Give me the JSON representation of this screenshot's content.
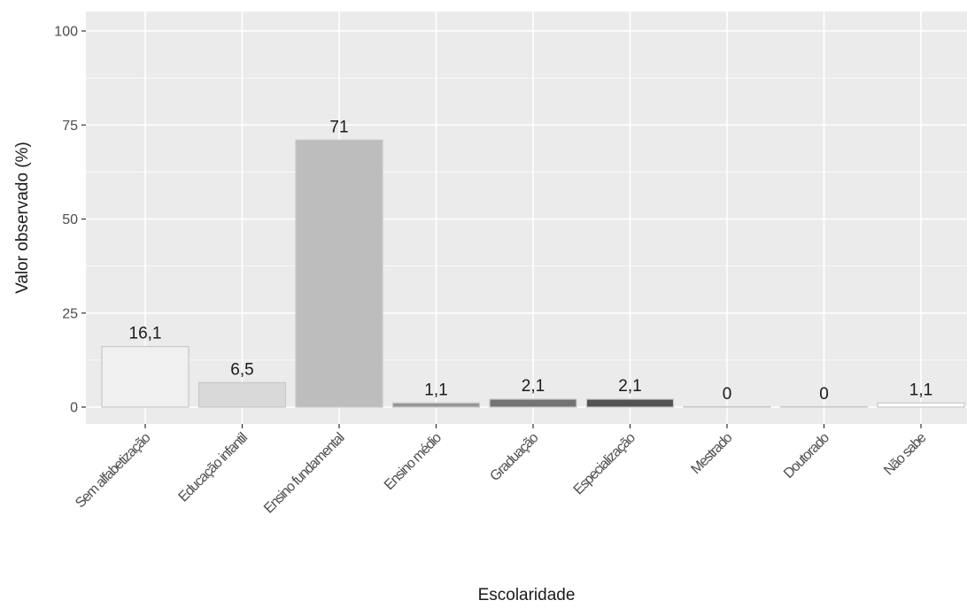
{
  "chart_data": {
    "type": "bar",
    "xlabel": "Escolaridade",
    "ylabel": "Valor observado (%)",
    "ylim": [
      -5,
      100
    ],
    "yticks": [
      0,
      25,
      50,
      75,
      100
    ],
    "grid": true,
    "categories": [
      "Sem alfabetização",
      "Educação infantil",
      "Ensino fundamental",
      "Ensino médio",
      "Graduação",
      "Especialização",
      "Mestrado",
      "Doutorado",
      "Não sabe"
    ],
    "values": [
      16.1,
      6.5,
      71,
      1.1,
      2.1,
      2.1,
      0,
      0,
      1.1
    ],
    "value_labels": [
      "16,1",
      "6,5",
      "71",
      "1,1",
      "2,1",
      "2,1",
      "0",
      "0",
      "1,1"
    ],
    "bar_colors": [
      "#f0f0f0",
      "#d9d9d9",
      "#bdbdbd",
      "#969696",
      "#737373",
      "#525252",
      "#d9d9d9",
      "#d9d9d9",
      "#ffffff"
    ],
    "bar_outline": "#c8c8c8",
    "panel_background": "#ebebeb"
  }
}
